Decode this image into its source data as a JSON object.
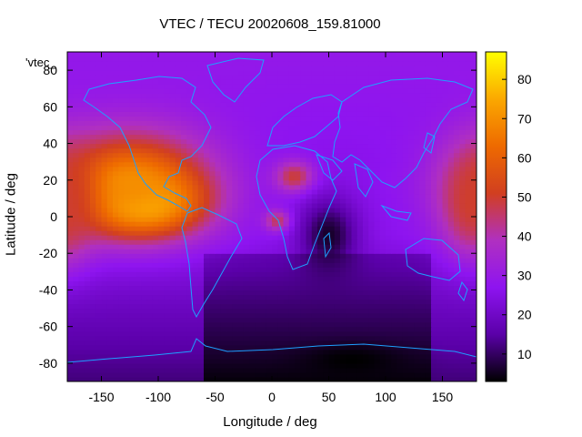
{
  "chart_data": {
    "type": "heatmap",
    "title": "VTEC / TECU 20020608_159.81000",
    "xlabel": "Longitude / deg",
    "ylabel": "Latitude / deg",
    "key_label": "'vtec_",
    "xlim": [
      -180,
      180
    ],
    "ylim": [
      -90,
      90
    ],
    "x_ticks": [
      -150,
      -100,
      -50,
      0,
      50,
      100,
      150
    ],
    "y_ticks": [
      -80,
      -60,
      -40,
      -20,
      0,
      20,
      40,
      60,
      80
    ],
    "colorbar": {
      "range": [
        3,
        87
      ],
      "ticks": [
        10,
        20,
        30,
        40,
        50,
        60,
        70,
        80
      ],
      "palette": [
        "#000000",
        "#5a00a8",
        "#8e14f0",
        "#b030c0",
        "#d13f20",
        "#ee6a00",
        "#fba800",
        "#ffff00"
      ]
    },
    "grid": false,
    "legend": "none",
    "coastline_color": "#1ea0ff",
    "tec_features": [
      {
        "lon": -112,
        "lat": 8,
        "value": 86,
        "spread_lon": 32,
        "spread_lat": 11
      },
      {
        "lon": -125,
        "lat": 18,
        "value": 70,
        "spread_lon": 50,
        "spread_lat": 20
      },
      {
        "lon": 175,
        "lat": 8,
        "value": 50,
        "spread_lon": 18,
        "spread_lat": 20
      },
      {
        "lon": 20,
        "lat": 22,
        "value": 50,
        "spread_lon": 12,
        "spread_lat": 6
      },
      {
        "lon": 5,
        "lat": -2,
        "value": 48,
        "spread_lon": 8,
        "spread_lat": 4
      },
      {
        "lon": 50,
        "lat": -10,
        "value": 6,
        "spread_lon": 18,
        "spread_lat": 14
      },
      {
        "lon": 70,
        "lat": -78,
        "value": 3,
        "spread_lon": 30,
        "spread_lat": 6
      }
    ]
  }
}
